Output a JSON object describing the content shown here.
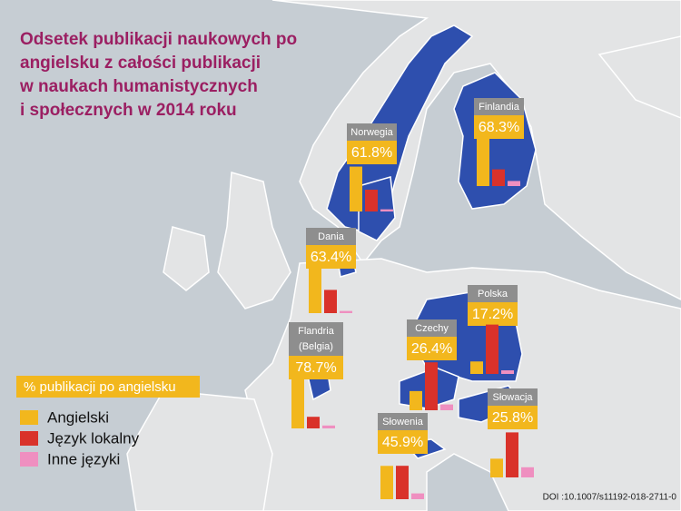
{
  "title": [
    "Odsetek publikacji naukowych po",
    "angielsku z całości publikacji",
    "w naukach humanistycznych",
    "i społecznych w 2014 roku"
  ],
  "legend": {
    "title": "% publikacji po angielsku",
    "items": [
      {
        "label": "Angielski",
        "color": "#f2b71d"
      },
      {
        "label": "Język lokalny",
        "color": "#d9322a"
      },
      {
        "label": "Inne języki",
        "color": "#ef8fc0"
      }
    ]
  },
  "countries": [
    {
      "name": "Norwegia",
      "value_label": "61.8%",
      "values": [
        61.8,
        30,
        3
      ]
    },
    {
      "name": "Finlandia",
      "value_label": "68.3%",
      "values": [
        68.3,
        23,
        7
      ]
    },
    {
      "name": "Dania",
      "value_label": "63.4%",
      "values": [
        63.4,
        32,
        3
      ]
    },
    {
      "name": "Flandria",
      "note": "(Belgia)",
      "value_label": "78.7%",
      "values": [
        78.7,
        16,
        4
      ]
    },
    {
      "name": "Czechy",
      "value_label": "26.4%",
      "values": [
        26.4,
        66,
        8
      ]
    },
    {
      "name": "Polska",
      "value_label": "17.2%",
      "values": [
        17.2,
        68,
        5
      ]
    },
    {
      "name": "Słowacja",
      "value_label": "25.8%",
      "values": [
        25.8,
        62,
        14
      ]
    },
    {
      "name": "Słowenia",
      "value_label": "45.9%",
      "values": [
        45.9,
        46,
        8
      ]
    }
  ],
  "source": "DOI :10.1007/s11192-018-2711-0"
}
